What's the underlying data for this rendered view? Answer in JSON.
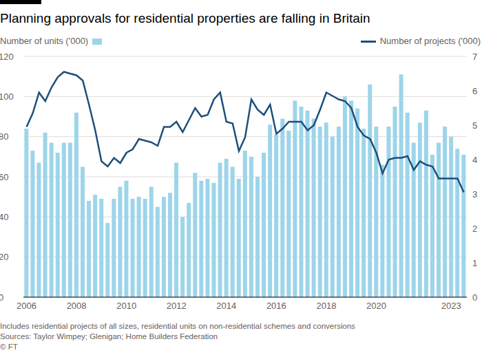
{
  "chart_data": {
    "type": "bar",
    "title": "Planning approvals for residential properties are falling in Britain",
    "categories": [
      "2006",
      null,
      null,
      null,
      null,
      null,
      null,
      null,
      "2008",
      null,
      null,
      null,
      null,
      null,
      null,
      null,
      "2010",
      null,
      null,
      null,
      null,
      null,
      null,
      null,
      "2012",
      null,
      null,
      null,
      null,
      null,
      null,
      null,
      "2014",
      null,
      null,
      null,
      null,
      null,
      null,
      null,
      "2016",
      null,
      null,
      null,
      null,
      null,
      null,
      null,
      "2018",
      null,
      null,
      null,
      null,
      null,
      null,
      null,
      "2020",
      null,
      null,
      null,
      null,
      null,
      null,
      null,
      null,
      null,
      null,
      null,
      "2023",
      null,
      null
    ],
    "series": [
      {
        "name": "Number of units ('000)",
        "type": "bar",
        "color": "#9dd5ea",
        "values": [
          84,
          73,
          67,
          82,
          77,
          72,
          77,
          77,
          92,
          65,
          48,
          51,
          49,
          37,
          49,
          55,
          58,
          49,
          50,
          49,
          55,
          45,
          50,
          52,
          67,
          40,
          47,
          62,
          58,
          59,
          57,
          67,
          69,
          65,
          59,
          73,
          70,
          60,
          72,
          86,
          81,
          89,
          83,
          98,
          95,
          93,
          89,
          85,
          87,
          80,
          85,
          100,
          98,
          94,
          84,
          106,
          85,
          66,
          85,
          95,
          111,
          92,
          77,
          87,
          93,
          71,
          77,
          85,
          80,
          74,
          71
        ]
      },
      {
        "name": "Number of projects ('000)",
        "type": "line",
        "axis": "y2",
        "color": "#1d4f7c",
        "values": [
          4.95,
          5.35,
          5.95,
          5.7,
          6.1,
          6.4,
          6.55,
          6.5,
          6.45,
          6.3,
          5.6,
          4.85,
          3.95,
          3.8,
          4.05,
          3.9,
          4.2,
          4.3,
          4.6,
          4.55,
          4.5,
          4.4,
          4.95,
          4.95,
          5.1,
          4.8,
          5.15,
          5.5,
          5.25,
          5.3,
          5.75,
          5.95,
          5.1,
          5.05,
          4.25,
          4.65,
          5.75,
          5.45,
          5.3,
          5.6,
          4.75,
          4.9,
          5.1,
          5.1,
          5.1,
          4.85,
          5.0,
          5.45,
          5.95,
          5.85,
          5.75,
          5.7,
          5.5,
          4.95,
          4.7,
          4.6,
          4.2,
          3.6,
          4.0,
          4.05,
          4.05,
          4.1,
          3.7,
          3.95,
          3.85,
          3.8,
          3.45,
          3.45,
          3.45,
          3.45,
          3.05
        ]
      }
    ],
    "ylim": [
      0,
      120
    ],
    "yticks": [
      0,
      20,
      40,
      60,
      80,
      100,
      120
    ],
    "y2lim": [
      0,
      7
    ],
    "y2ticks": [
      0,
      1,
      2,
      3,
      4,
      5,
      6,
      7
    ],
    "grid": true,
    "legend": "top",
    "notes": [
      "Includes residential projects of all sizes, residential units on non-residential schemes and conversions",
      "Sources: Taylor Wimpey; Glenigan; Home Builders Federation"
    ],
    "credit": "© FT"
  }
}
